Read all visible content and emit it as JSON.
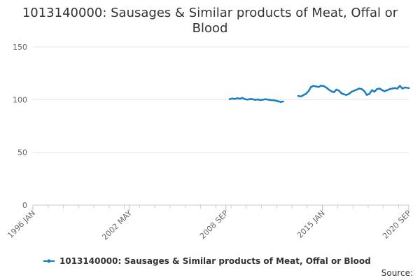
{
  "chart_data": {
    "type": "line",
    "title_lines": [
      "1013140000: Sausages & Similar products of Meat, Offal or",
      "Blood"
    ],
    "xlabel": "",
    "ylabel": "",
    "x_range": [
      "1996-01",
      "2020-09"
    ],
    "x_ticks": [
      "1996 JAN",
      "2002 MAY",
      "2008 SEP",
      "2015 JAN",
      "2020 SEP"
    ],
    "ylim": [
      0,
      150
    ],
    "y_ticks": [
      0,
      50,
      100,
      150
    ],
    "grid": "horizontal",
    "legend_position": "bottom",
    "series": [
      {
        "name": "1013140000: Sausages & Similar products of Meat, Offal or Blood",
        "color": "#1a7fc1",
        "segments": [
          [
            [
              "2008-12",
              100.5
            ],
            [
              "2009-02",
              101.0
            ],
            [
              "2009-04",
              100.7
            ],
            [
              "2009-06",
              101.3
            ],
            [
              "2009-08",
              100.9
            ],
            [
              "2009-10",
              101.6
            ],
            [
              "2009-12",
              100.4
            ],
            [
              "2010-02",
              100.0
            ],
            [
              "2010-04",
              100.6
            ],
            [
              "2010-06",
              100.4
            ],
            [
              "2010-08",
              99.8
            ],
            [
              "2010-10",
              100.2
            ],
            [
              "2010-12",
              99.6
            ],
            [
              "2011-02",
              99.9
            ],
            [
              "2011-04",
              100.4
            ],
            [
              "2011-06",
              100.0
            ],
            [
              "2011-08",
              99.6
            ],
            [
              "2011-10",
              99.5
            ],
            [
              "2011-12",
              99.1
            ],
            [
              "2012-02",
              98.5
            ],
            [
              "2012-04",
              97.8
            ],
            [
              "2012-06",
              98.2
            ]
          ],
          [
            [
              "2013-06",
              103.5
            ],
            [
              "2013-08",
              103.0
            ],
            [
              "2013-10",
              104.2
            ],
            [
              "2013-12",
              105.5
            ],
            [
              "2014-02",
              108.0
            ],
            [
              "2014-04",
              112.0
            ],
            [
              "2014-06",
              113.0
            ],
            [
              "2014-08",
              112.5
            ],
            [
              "2014-10",
              112.0
            ],
            [
              "2014-12",
              113.2
            ],
            [
              "2015-02",
              112.8
            ],
            [
              "2015-04",
              111.5
            ],
            [
              "2015-06",
              109.5
            ],
            [
              "2015-08",
              108.0
            ],
            [
              "2015-10",
              107.0
            ],
            [
              "2015-12",
              109.5
            ],
            [
              "2016-02",
              108.5
            ],
            [
              "2016-04",
              106.0
            ],
            [
              "2016-06",
              105.0
            ],
            [
              "2016-08",
              104.5
            ],
            [
              "2016-10",
              105.5
            ],
            [
              "2016-12",
              107.5
            ],
            [
              "2017-02",
              108.5
            ],
            [
              "2017-04",
              109.5
            ],
            [
              "2017-06",
              110.5
            ],
            [
              "2017-08",
              110.0
            ],
            [
              "2017-10",
              108.0
            ],
            [
              "2017-12",
              104.5
            ],
            [
              "2018-02",
              105.5
            ],
            [
              "2018-04",
              109.0
            ],
            [
              "2018-06",
              107.5
            ],
            [
              "2018-08",
              110.0
            ],
            [
              "2018-10",
              110.5
            ],
            [
              "2018-12",
              109.0
            ],
            [
              "2019-02",
              108.0
            ],
            [
              "2019-04",
              109.0
            ],
            [
              "2019-06",
              110.0
            ],
            [
              "2019-08",
              110.5
            ],
            [
              "2019-10",
              111.0
            ],
            [
              "2019-12",
              110.5
            ],
            [
              "2020-02",
              113.0
            ],
            [
              "2020-04",
              110.5
            ],
            [
              "2020-06",
              111.5
            ],
            [
              "2020-09",
              111.0
            ]
          ]
        ]
      }
    ]
  },
  "source_label": "Source:"
}
